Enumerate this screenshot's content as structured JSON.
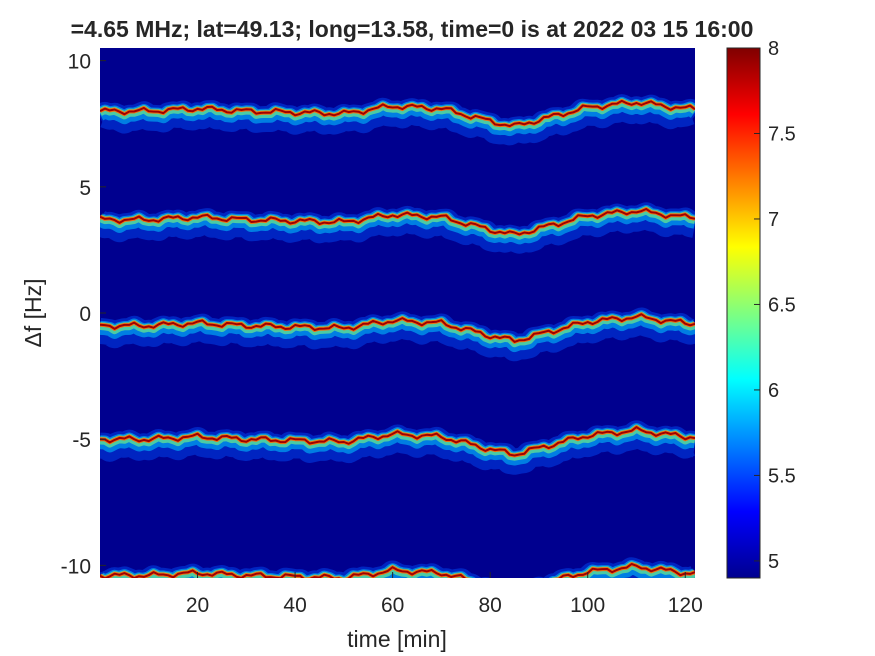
{
  "chart_data": {
    "type": "heatmap",
    "title": "=4.65 MHz;  lat=49.13; long=13.58, time=0 is at 2022 03 15 16:00",
    "xlabel": "time [min]",
    "ylabel": "Δf [Hz]",
    "xlim": [
      0,
      122
    ],
    "ylim": [
      -10.5,
      10.5
    ],
    "xticks": [
      "20",
      "40",
      "60",
      "80",
      "100",
      "120"
    ],
    "xtick_values": [
      20,
      40,
      60,
      80,
      100,
      120
    ],
    "yticks": [
      "10",
      "5",
      "0",
      "-5",
      "-10"
    ],
    "ytick_values": [
      10,
      5,
      0,
      -5,
      -10
    ],
    "colormap": "jet",
    "background_color": "#00008f",
    "colorbar": {
      "range": [
        4.9,
        8.0
      ],
      "ticks": [
        "8",
        "7.5",
        "7",
        "6.5",
        "6",
        "5.5",
        "5"
      ],
      "tick_values": [
        8,
        7.5,
        7,
        6.5,
        6,
        5.5,
        5
      ]
    },
    "trace_baselines_hz": [
      8,
      3.7,
      -0.5,
      -5,
      -10.4
    ],
    "trace_shape": {
      "time_min": [
        0,
        10,
        20,
        30,
        40,
        50,
        60,
        70,
        80,
        85,
        90,
        100,
        110,
        120
      ],
      "offset_hz": [
        0,
        0,
        0.1,
        0,
        -0.05,
        -0.1,
        0.2,
        0.1,
        -0.4,
        -0.6,
        -0.35,
        0.15,
        0.35,
        0.1
      ]
    }
  }
}
